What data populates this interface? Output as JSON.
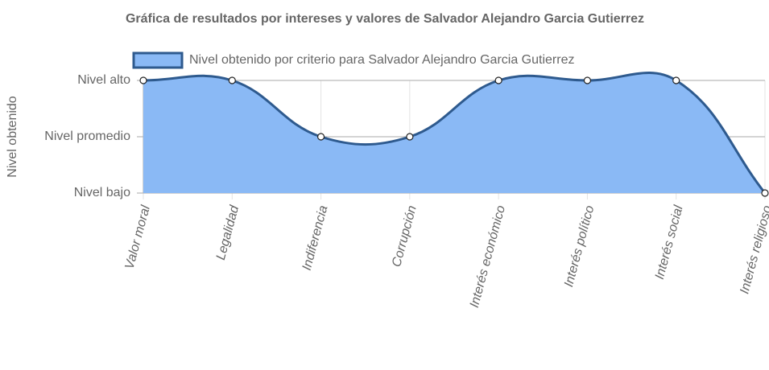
{
  "chart_data": {
    "type": "area",
    "title": "Gráfica de resultados por intereses y valores de Salvador Alejandro Garcia Gutierrez",
    "y_label": "Nivel obtenido",
    "categories": [
      "Valor moral",
      "Legalidad",
      "Indiferencia",
      "Corrupción",
      "Interés económico",
      "Interés político",
      "Interés social",
      "Interés religioso"
    ],
    "series": [
      {
        "name": "Nivel obtenido por criterio para Salvador Alejandro Garcia Gutierrez",
        "color": "#2e5a8e",
        "fill": "#8ab9f5",
        "values": [
          3,
          3,
          2,
          2,
          3,
          3,
          3,
          1
        ]
      }
    ],
    "ylim": [
      1,
      3
    ],
    "yticks": [
      {
        "value": 1,
        "label": "Nivel bajo"
      },
      {
        "value": 2,
        "label": "Nivel promedio"
      },
      {
        "value": 3,
        "label": "Nivel alto"
      }
    ],
    "grid": true,
    "legend": "top"
  }
}
